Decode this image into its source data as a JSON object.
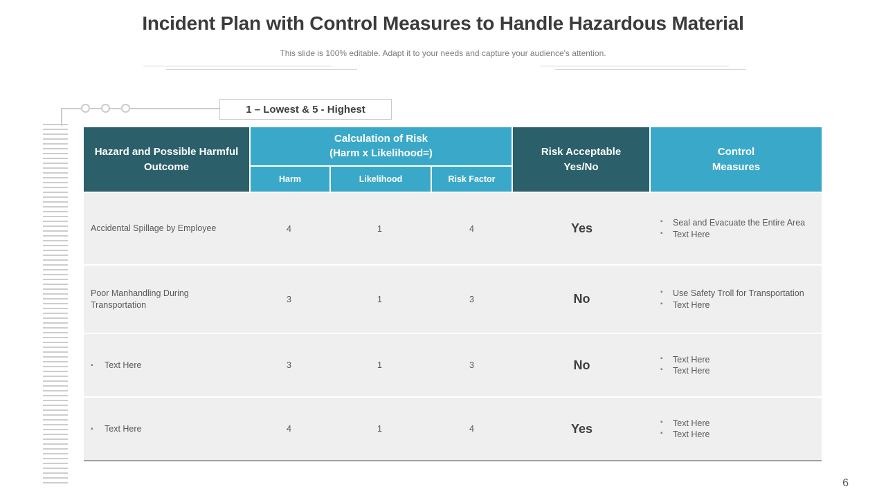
{
  "slide": {
    "title": "Incident Plan with Control Measures to Handle Hazardous Material",
    "subtitle": "This slide is 100% editable. Adapt it to your needs and capture your audience's attention.",
    "scale_note": "1 – Lowest & 5 - Highest",
    "page_number": "6"
  },
  "table": {
    "headers": {
      "hazard": "Hazard and Possible Harmful Outcome",
      "calculation": {
        "line1": "Calculation of Risk",
        "line2": "(Harm x Likelihood=)"
      },
      "sub": [
        "Harm",
        "Likelihood",
        "Risk Factor"
      ],
      "risk_acceptable": {
        "line1": "Risk Acceptable",
        "line2": "Yes/No"
      },
      "control": {
        "line1": "Control",
        "line2": "Measures"
      }
    },
    "rows": [
      {
        "hazard": "Accidental Spillage by Employee",
        "hazard_bullet": false,
        "harm": "4",
        "likelihood": "1",
        "risk_factor": "4",
        "acceptable": "Yes",
        "controls": [
          "Seal and Evacuate the Entire Area",
          "Text Here"
        ]
      },
      {
        "hazard": "Poor Manhandling During Transportation",
        "hazard_bullet": false,
        "harm": "3",
        "likelihood": "1",
        "risk_factor": "3",
        "acceptable": "No",
        "controls": [
          "Use Safety Troll for Transportation",
          "Text Here"
        ]
      },
      {
        "hazard": "Text Here",
        "hazard_bullet": true,
        "harm": "3",
        "likelihood": "1",
        "risk_factor": "3",
        "acceptable": "No",
        "controls": [
          "Text Here",
          "Text Here"
        ]
      },
      {
        "hazard": "Text Here",
        "hazard_bullet": true,
        "harm": "4",
        "likelihood": "1",
        "risk_factor": "4",
        "acceptable": "Yes",
        "controls": [
          "Text Here",
          "Text Here"
        ]
      }
    ]
  },
  "colors": {
    "header_dark_teal": "#2b5f6a",
    "header_light_blue": "#3aa9c9",
    "row_background": "#efeff0",
    "body_text": "#595959",
    "decoration_gray": "#cdcdcd"
  }
}
